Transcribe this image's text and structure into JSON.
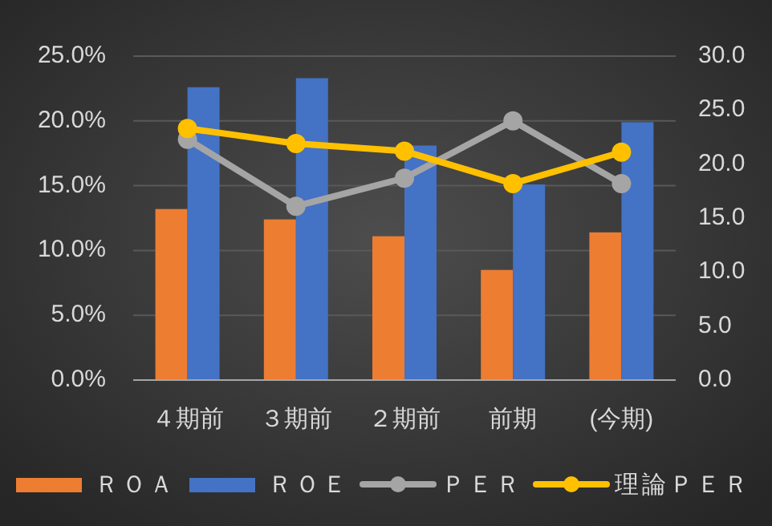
{
  "chart_data": {
    "type": "bar",
    "categories": [
      "４期前",
      "３期前",
      "２期前",
      "前期",
      "(今期)"
    ],
    "series": [
      {
        "name": "ＲＯＡ",
        "color": "#ed7d31",
        "values": [
          13.2,
          12.4,
          11.1,
          8.5,
          11.4
        ]
      },
      {
        "name": "ＲＯＥ",
        "color": "#4472c4",
        "values": [
          22.6,
          23.3,
          18.1,
          15.1,
          19.9
        ]
      },
      {
        "name": "ＰＥＲ",
        "type": "line",
        "axis": "y2",
        "color": "#a5a5a5",
        "marker": "circle",
        "values": [
          22.3,
          16.1,
          18.7,
          24.0,
          18.2
        ]
      },
      {
        "name": "理論ＰＥＲ",
        "type": "line",
        "axis": "y2",
        "color": "#ffc000",
        "marker": "circle",
        "values": [
          23.3,
          21.9,
          21.2,
          18.2,
          21.1
        ]
      }
    ],
    "ylim": [
      0,
      25
    ],
    "yticks": [
      {
        "value": 0,
        "label": "0.0%"
      },
      {
        "value": 5,
        "label": "5.0%"
      },
      {
        "value": 10,
        "label": "10.0%"
      },
      {
        "value": 15,
        "label": "15.0%"
      },
      {
        "value": 20,
        "label": "20.0%"
      },
      {
        "value": 25,
        "label": "25.0%"
      }
    ],
    "y2lim": [
      0,
      30
    ],
    "y2ticks": [
      {
        "value": 0,
        "label": "0.0"
      },
      {
        "value": 5,
        "label": "5.0"
      },
      {
        "value": 10,
        "label": "10.0"
      },
      {
        "value": 15,
        "label": "15.0"
      },
      {
        "value": 20,
        "label": "20.0"
      },
      {
        "value": 25,
        "label": "25.0"
      },
      {
        "value": 30,
        "label": "30.0"
      }
    ],
    "grid": "y",
    "legend": "bottom"
  }
}
